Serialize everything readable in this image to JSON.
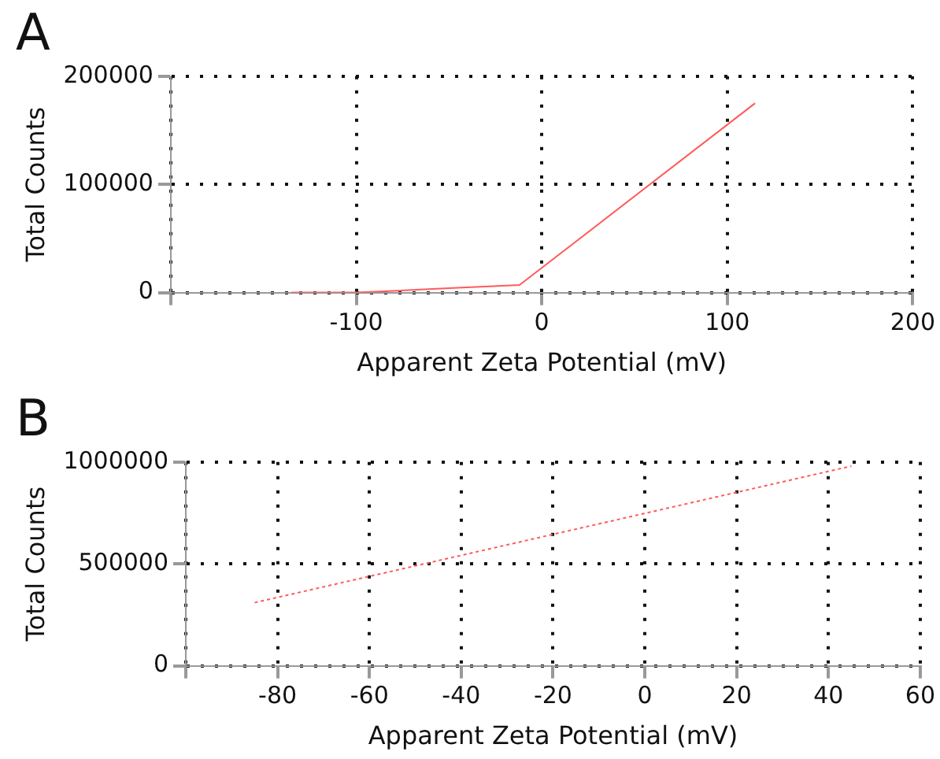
{
  "chart_data": [
    {
      "type": "line",
      "title": "A",
      "xlabel": "Apparent Zeta Potential (mV)",
      "ylabel": "Total Counts",
      "grid": true,
      "legend": false,
      "marker": "none",
      "line_style": "solid",
      "x": [
        -135,
        -100,
        -50,
        -12,
        115
      ],
      "series": [
        {
          "color": "#ff5a5a",
          "values": [
            0,
            0,
            4000,
            7000,
            175000
          ]
        }
      ],
      "xlim": [
        -200,
        200
      ],
      "xticks": [
        {
          "value": -200,
          "label": null
        },
        -100,
        0,
        100,
        200
      ],
      "ylim": [
        0,
        200000
      ],
      "yticks": [
        0,
        100000,
        200000
      ]
    },
    {
      "type": "line",
      "title": "B",
      "xlabel": "Apparent Zeta Potential (mV)",
      "ylabel": "Total Counts",
      "grid": true,
      "legend": false,
      "marker": "none",
      "line_style": "dotted",
      "x": [
        -85,
        45
      ],
      "series": [
        {
          "color": "#ff5a5a",
          "values": [
            310000,
            980000
          ]
        }
      ],
      "xlim": [
        -100,
        60
      ],
      "xticks": [
        {
          "value": -100,
          "label": null
        },
        -80,
        -60,
        -40,
        -20,
        0,
        20,
        40,
        60
      ],
      "ylim": [
        0,
        1000000
      ],
      "yticks": [
        0,
        500000,
        1000000
      ]
    }
  ]
}
